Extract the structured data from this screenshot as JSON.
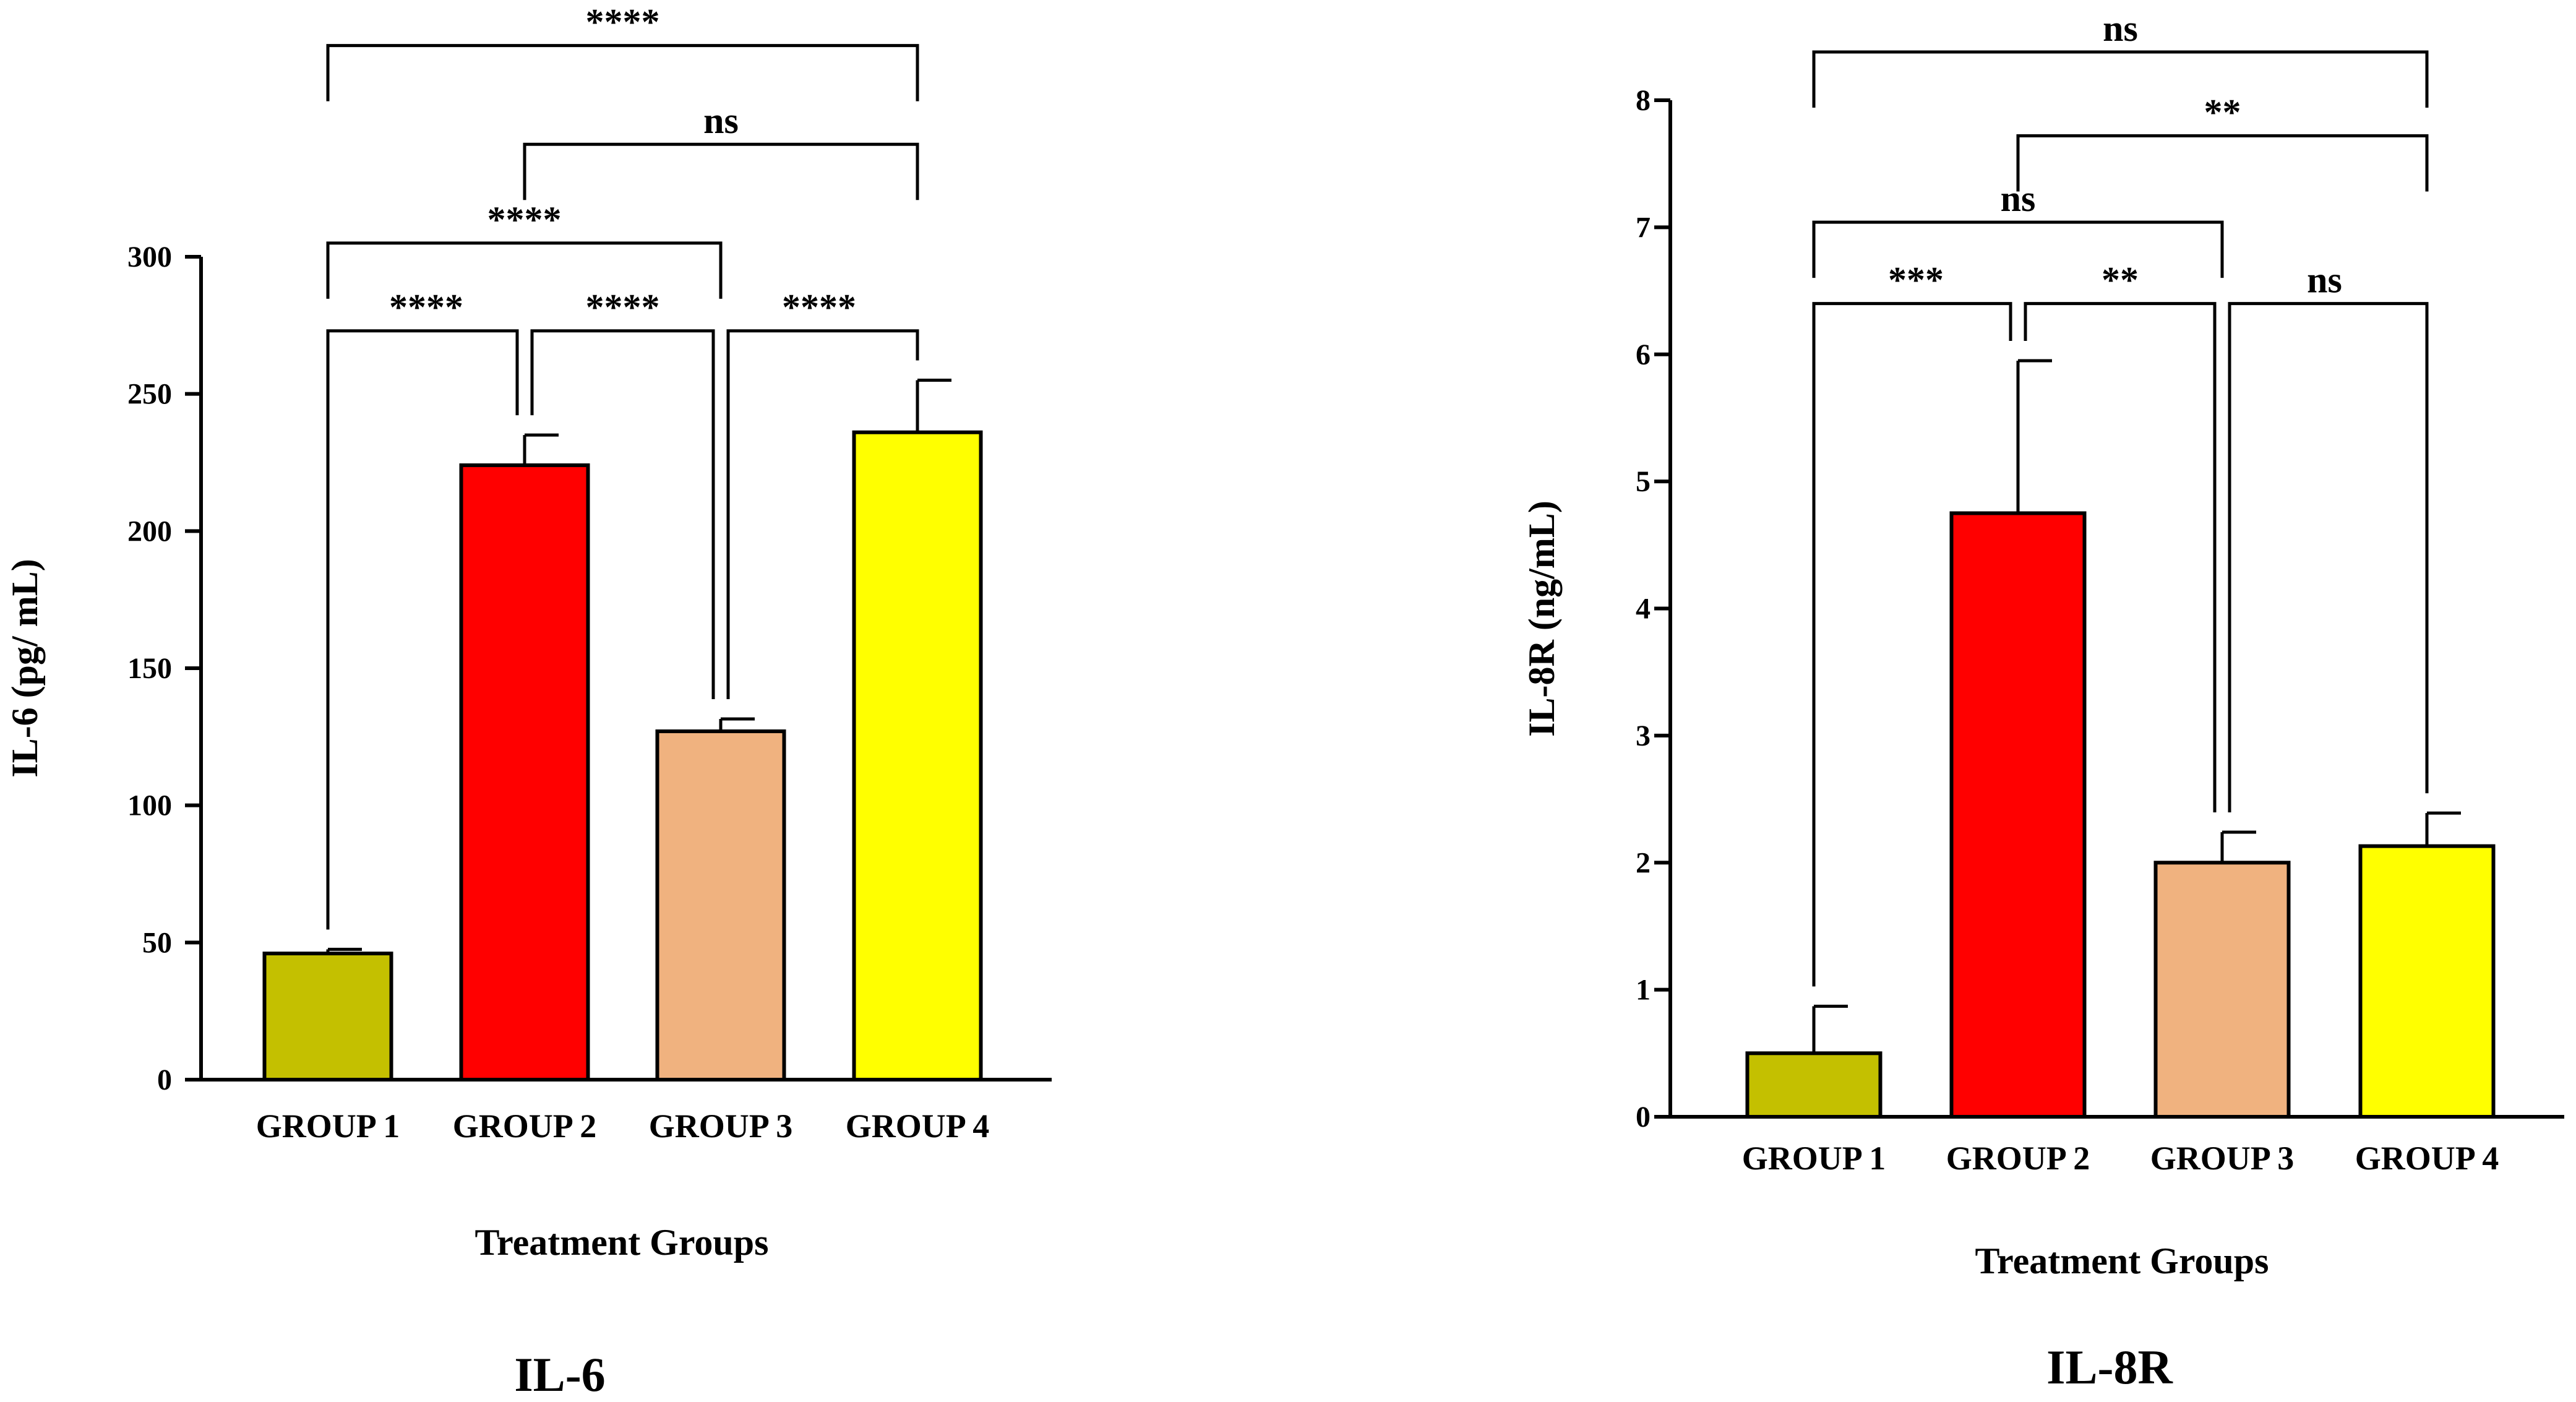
{
  "chart_data": [
    {
      "type": "bar",
      "title": "IL-6",
      "xlabel": "Treatment Groups",
      "ylabel": "IL-6 (pg/ mL)",
      "ylim": [
        0,
        300
      ],
      "yticks": [
        0,
        50,
        100,
        150,
        200,
        250,
        300
      ],
      "categories": [
        "GROUP 1",
        "GROUP 2",
        "GROUP 3",
        "GROUP 4"
      ],
      "values": [
        46,
        224,
        127,
        236
      ],
      "errors": [
        1.5,
        11,
        4.5,
        19
      ],
      "colors": [
        "#c4c000",
        "#ff0000",
        "#f0b27f",
        "#ffff00"
      ],
      "significance": [
        {
          "from": 0,
          "to": 1,
          "label": "****",
          "y": 273
        },
        {
          "from": 1,
          "to": 2,
          "label": "****",
          "y": 273
        },
        {
          "from": 2,
          "to": 3,
          "label": "****",
          "y": 273
        },
        {
          "from": 0,
          "to": 2,
          "label": "****",
          "y": 305
        },
        {
          "from": 1,
          "to": 3,
          "label": "ns",
          "y": 341
        },
        {
          "from": 0,
          "to": 3,
          "label": "****",
          "y": 377
        }
      ]
    },
    {
      "type": "bar",
      "title": "IL-8R",
      "xlabel": "Treatment Groups",
      "ylabel": "IL-8R (ng/mL)",
      "ylim": [
        0,
        8
      ],
      "yticks": [
        0,
        1,
        2,
        3,
        4,
        5,
        6,
        7,
        8
      ],
      "categories": [
        "GROUP 1",
        "GROUP 2",
        "GROUP 3",
        "GROUP 4"
      ],
      "values": [
        0.5,
        4.75,
        2.0,
        2.13
      ],
      "errors": [
        0.37,
        1.2,
        0.24,
        0.26
      ],
      "colors": [
        "#c4c000",
        "#ff0000",
        "#f0b27f",
        "#ffff00"
      ],
      "significance": [
        {
          "from": 0,
          "to": 1,
          "label": "***",
          "y": 6.4
        },
        {
          "from": 1,
          "to": 2,
          "label": "**",
          "y": 6.4
        },
        {
          "from": 2,
          "to": 3,
          "label": "ns",
          "y": 6.4
        },
        {
          "from": 0,
          "to": 2,
          "label": "ns",
          "y": 7.04
        },
        {
          "from": 1,
          "to": 3,
          "label": "**",
          "y": 7.72
        },
        {
          "from": 0,
          "to": 3,
          "label": "ns",
          "y": 8.38
        }
      ]
    }
  ]
}
